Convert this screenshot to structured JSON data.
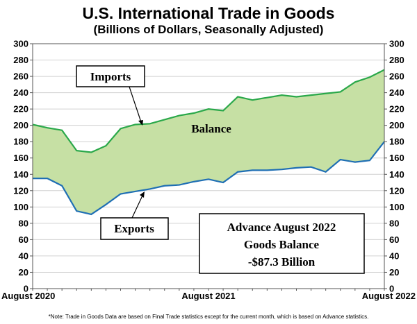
{
  "chart_data": {
    "type": "line",
    "title": "U.S. International Trade in Goods",
    "subtitle": "(Billions of Dollars, Seasonally Adjusted)",
    "x": [
      "Aug 2020",
      "Sep 2020",
      "Oct 2020",
      "Nov 2020",
      "Dec 2020",
      "Jan 2021",
      "Feb 2021",
      "Mar 2021",
      "Apr 2021",
      "May 2021",
      "Jun 2021",
      "Jul 2021",
      "Aug 2021",
      "Sep 2021",
      "Oct 2021",
      "Nov 2021",
      "Dec 2021",
      "Jan 2022",
      "Feb 2022",
      "Mar 2022",
      "Apr 2022",
      "May 2022",
      "Jun 2022",
      "Jul 2022",
      "Aug 2022"
    ],
    "x_tick_labels": [
      {
        "index": 0,
        "label": "August 2020"
      },
      {
        "index": 12,
        "label": "August 2021"
      },
      {
        "index": 24,
        "label": "August 2022"
      }
    ],
    "series": [
      {
        "name": "Imports",
        "color": "#2aa84a",
        "values": [
          201,
          197,
          194,
          169,
          167,
          175,
          196,
          201,
          202,
          207,
          212,
          215,
          220,
          218,
          235,
          231,
          234,
          237,
          235,
          237,
          239,
          241,
          253,
          259,
          268
        ]
      },
      {
        "name": "Exports",
        "color": "#1f6fb4",
        "values": [
          135,
          135,
          126,
          95,
          91,
          103,
          116,
          119,
          122,
          126,
          127,
          131,
          134,
          130,
          143,
          145,
          145,
          146,
          148,
          149,
          143,
          158,
          155,
          157,
          180
        ]
      }
    ],
    "fill": {
      "name": "Balance",
      "color": "#c6e0a4"
    },
    "ylim": [
      0,
      300
    ],
    "y_ticks": [
      0,
      20,
      40,
      60,
      80,
      100,
      120,
      140,
      160,
      180,
      200,
      220,
      240,
      260,
      280,
      300
    ],
    "grid": "horizontal",
    "annotations": {
      "imports_label": "Imports",
      "exports_label": "Exports",
      "balance_label": "Balance",
      "summary_lines": [
        "Advance August 2022",
        "Goods Balance",
        "-$87.3 Billion"
      ]
    }
  },
  "note": "*Note: Trade in Goods Data are based on Final Trade statistics except for the current month, which is based on Advance statistics."
}
